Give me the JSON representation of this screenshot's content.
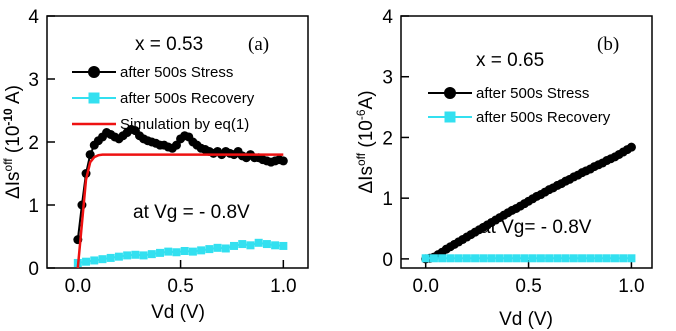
{
  "chart_data": [
    {
      "type": "line",
      "panel_label": "(a)",
      "annotation": "x = 0.53",
      "condition": "at Vg = - 0.8V",
      "xlabel": "Vd (V)",
      "ylabel": {
        "prefix": "ΔIs",
        "sup": "off",
        "unit_open": " (10",
        "exp": "-10",
        "unit_close": " A)"
      },
      "xlim": [
        -0.15,
        1.12
      ],
      "ylim": [
        0,
        4
      ],
      "xticks": [
        0.0,
        0.5,
        1.0
      ],
      "xtick_labels": [
        "0.0",
        "0.5",
        "1.0"
      ],
      "yticks": [
        0,
        1,
        2,
        3,
        4
      ],
      "ytick_labels": [
        "0",
        "1",
        "2",
        "3",
        "4"
      ],
      "legend_position": "top-right",
      "series": [
        {
          "name": "after 500s Stress",
          "color": "#000000",
          "marker": "circle",
          "x": [
            0.0,
            0.02,
            0.04,
            0.06,
            0.08,
            0.1,
            0.12,
            0.14,
            0.16,
            0.18,
            0.2,
            0.22,
            0.24,
            0.26,
            0.28,
            0.3,
            0.32,
            0.34,
            0.36,
            0.38,
            0.4,
            0.42,
            0.44,
            0.46,
            0.48,
            0.5,
            0.52,
            0.54,
            0.56,
            0.58,
            0.6,
            0.62,
            0.64,
            0.66,
            0.68,
            0.7,
            0.72,
            0.74,
            0.76,
            0.78,
            0.8,
            0.82,
            0.84,
            0.86,
            0.88,
            0.9,
            0.92,
            0.94,
            0.96,
            0.98,
            1.0
          ],
          "y": [
            0.45,
            1.0,
            1.5,
            1.8,
            1.95,
            2.02,
            2.08,
            2.15,
            2.12,
            2.08,
            2.05,
            2.1,
            2.15,
            2.2,
            2.18,
            2.1,
            2.05,
            2.02,
            2.0,
            1.98,
            1.95,
            1.95,
            1.92,
            1.9,
            1.95,
            2.05,
            2.1,
            2.08,
            2.0,
            1.95,
            1.9,
            1.88,
            1.85,
            1.82,
            1.85,
            1.8,
            1.85,
            1.82,
            1.8,
            1.85,
            1.78,
            1.75,
            1.8,
            1.75,
            1.75,
            1.72,
            1.7,
            1.68,
            1.7,
            1.72,
            1.7
          ]
        },
        {
          "name": "after 500s Recovery",
          "color": "#33e0f0",
          "marker": "square",
          "x": [
            0.0,
            0.04,
            0.08,
            0.12,
            0.16,
            0.2,
            0.24,
            0.28,
            0.32,
            0.36,
            0.4,
            0.44,
            0.48,
            0.52,
            0.56,
            0.6,
            0.64,
            0.68,
            0.72,
            0.76,
            0.8,
            0.84,
            0.88,
            0.92,
            0.96,
            1.0
          ],
          "y": [
            0.08,
            0.1,
            0.12,
            0.14,
            0.16,
            0.18,
            0.2,
            0.21,
            0.2,
            0.22,
            0.24,
            0.26,
            0.25,
            0.27,
            0.26,
            0.28,
            0.3,
            0.32,
            0.31,
            0.35,
            0.38,
            0.36,
            0.4,
            0.38,
            0.36,
            0.35
          ]
        },
        {
          "name": "Simulation by eq(1)",
          "color": "#ee1111",
          "marker": "none",
          "x": [
            0.0,
            0.02,
            0.04,
            0.06,
            0.08,
            0.1,
            0.12,
            0.15,
            0.2,
            0.3,
            0.5,
            0.7,
            1.0
          ],
          "y": [
            0.0,
            0.7,
            1.4,
            1.68,
            1.76,
            1.79,
            1.8,
            1.8,
            1.8,
            1.8,
            1.8,
            1.8,
            1.8
          ]
        }
      ]
    },
    {
      "type": "line",
      "panel_label": "(b)",
      "annotation": "x = 0.65",
      "condition": "at Vg= - 0.8V",
      "xlabel": "Vd (V)",
      "ylabel": {
        "prefix": "ΔIs",
        "sup": "off",
        "unit_open": " (10",
        "exp": "-6",
        "unit_close": "A)"
      },
      "xlim": [
        -0.12,
        1.1
      ],
      "ylim": [
        -0.15,
        4
      ],
      "xticks": [
        0.0,
        0.5,
        1.0
      ],
      "xtick_labels": [
        "0.0",
        "0.5",
        "1.0"
      ],
      "yticks": [
        0,
        1,
        2,
        3,
        4
      ],
      "ytick_labels": [
        "0",
        "1",
        "2",
        "3",
        "4"
      ],
      "legend_position": "top-right",
      "series": [
        {
          "name": "after 500s Stress",
          "color": "#000000",
          "marker": "circle",
          "x": [
            0.0,
            0.02,
            0.04,
            0.06,
            0.08,
            0.1,
            0.12,
            0.14,
            0.16,
            0.18,
            0.2,
            0.22,
            0.24,
            0.26,
            0.28,
            0.3,
            0.32,
            0.34,
            0.36,
            0.38,
            0.4,
            0.42,
            0.44,
            0.46,
            0.48,
            0.5,
            0.52,
            0.54,
            0.56,
            0.58,
            0.6,
            0.62,
            0.64,
            0.66,
            0.68,
            0.7,
            0.72,
            0.74,
            0.76,
            0.78,
            0.8,
            0.82,
            0.84,
            0.86,
            0.88,
            0.9,
            0.92,
            0.94,
            0.96,
            0.98,
            1.0
          ],
          "y": [
            0.0,
            0.01,
            0.03,
            0.07,
            0.11,
            0.16,
            0.2,
            0.24,
            0.28,
            0.32,
            0.36,
            0.4,
            0.44,
            0.48,
            0.52,
            0.56,
            0.6,
            0.64,
            0.68,
            0.72,
            0.76,
            0.8,
            0.83,
            0.87,
            0.91,
            0.95,
            0.99,
            1.03,
            1.06,
            1.1,
            1.14,
            1.17,
            1.21,
            1.24,
            1.28,
            1.31,
            1.35,
            1.38,
            1.42,
            1.45,
            1.48,
            1.52,
            1.55,
            1.58,
            1.62,
            1.65,
            1.68,
            1.72,
            1.76,
            1.8,
            1.84
          ]
        },
        {
          "name": "after 500s Recovery",
          "color": "#33e0f0",
          "marker": "square",
          "x": [
            0.0,
            0.04,
            0.08,
            0.12,
            0.16,
            0.2,
            0.24,
            0.28,
            0.32,
            0.36,
            0.4,
            0.44,
            0.48,
            0.52,
            0.56,
            0.6,
            0.64,
            0.68,
            0.72,
            0.76,
            0.8,
            0.84,
            0.88,
            0.92,
            0.96,
            1.0
          ],
          "y": [
            0.01,
            0.01,
            0.01,
            0.01,
            0.01,
            0.01,
            0.01,
            0.01,
            0.01,
            0.01,
            0.01,
            0.01,
            0.01,
            0.01,
            0.01,
            0.01,
            0.01,
            0.01,
            0.01,
            0.01,
            0.01,
            0.01,
            0.01,
            0.01,
            0.01,
            0.01
          ]
        }
      ]
    }
  ]
}
